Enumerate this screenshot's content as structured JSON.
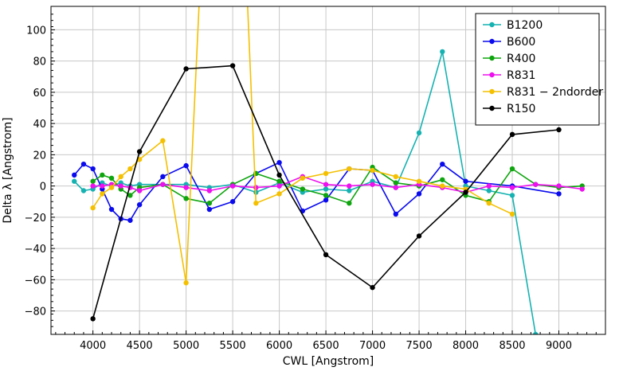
{
  "chart_data": {
    "type": "line",
    "title": "",
    "xlabel": "CWL [Angstrom]",
    "ylabel": "Delta λ [Angstrom]",
    "xlim": [
      3550,
      9500
    ],
    "ylim": [
      -95,
      115
    ],
    "xticks": [
      "4000",
      "4500",
      "5000",
      "5500",
      "6000",
      "6500",
      "7000",
      "7500",
      "8000",
      "8500",
      "9000"
    ],
    "yticks": [
      "−80",
      "−60",
      "−40",
      "−20",
      "0",
      "20",
      "40",
      "60",
      "80",
      "100"
    ],
    "grid": true,
    "legend_position": "top-right",
    "series": [
      {
        "name": "B1200",
        "color": "#16b2b2",
        "x": [
          3800,
          3900,
          4000,
          4100,
          4200,
          4300,
          4400,
          4500,
          4750,
          5000,
          5250,
          5500,
          5750,
          6000,
          6250,
          6500,
          6750,
          7000,
          7250,
          7500,
          7750,
          8000,
          8250,
          8500,
          8750
        ],
        "y": [
          3,
          -3,
          -2,
          2,
          0,
          2,
          0,
          1,
          1,
          1,
          -1,
          1,
          -4,
          2,
          -4,
          -2,
          -3,
          3,
          -1,
          34,
          86,
          0,
          -3,
          -6,
          -95
        ]
      },
      {
        "name": "B600",
        "color": "#0a0aee",
        "x": [
          3800,
          3900,
          4000,
          4100,
          4200,
          4300,
          4400,
          4500,
          4750,
          5000,
          5250,
          5500,
          5750,
          6000,
          6250,
          6500,
          6750,
          7000,
          7250,
          7500,
          7750,
          8000,
          8500,
          9000
        ],
        "y": [
          7,
          14,
          11,
          -2,
          -15,
          -21,
          -22,
          -12,
          6,
          13,
          -15,
          -10,
          8,
          15,
          -16,
          -9,
          11,
          10,
          -18,
          -5,
          14,
          3,
          0,
          -5
        ]
      },
      {
        "name": "R400",
        "color": "#0ea50e",
        "x": [
          4000,
          4100,
          4200,
          4300,
          4400,
          4500,
          4750,
          5000,
          5250,
          5500,
          5750,
          6000,
          6250,
          6500,
          6750,
          7000,
          7250,
          7500,
          7750,
          8000,
          8250,
          8500,
          8750,
          9000,
          9250
        ],
        "y": [
          3,
          7,
          5,
          -2,
          -6,
          -1,
          1,
          -8,
          -11,
          1,
          8,
          3,
          -2,
          -6,
          -11,
          12,
          2,
          0,
          4,
          -6,
          -10,
          11,
          1,
          -1,
          0
        ]
      },
      {
        "name": "R831",
        "color": "#ee10ee",
        "x": [
          4000,
          4100,
          4200,
          4300,
          4400,
          4500,
          4750,
          5000,
          5250,
          5500,
          5750,
          6000,
          6250,
          6500,
          6750,
          7000,
          7250,
          7500,
          7750,
          8000,
          8250,
          8500,
          8750,
          9000,
          9250
        ],
        "y": [
          0,
          0,
          1,
          0,
          -1,
          -3,
          1,
          -1,
          -3,
          0,
          -1,
          0,
          6,
          1,
          0,
          1,
          -1,
          1,
          -1,
          -4,
          0,
          -1,
          1,
          0,
          -2
        ]
      },
      {
        "name": "R831 − 2ndorder",
        "color": "#f4c000",
        "x": [
          4000,
          4100,
          4200,
          4300,
          4400,
          4500,
          4750,
          5000,
          5150,
          5650,
          5750,
          6000,
          6250,
          6500,
          6750,
          7000,
          7250,
          7500,
          7750,
          8000,
          8250,
          8500
        ],
        "y": [
          -14,
          -5,
          -1,
          6,
          11,
          17,
          29,
          -62,
          130,
          130,
          -11,
          -5,
          5,
          8,
          11,
          10,
          6,
          3,
          0,
          -2,
          -11,
          -18
        ]
      },
      {
        "name": "R150",
        "color": "#000000",
        "x": [
          4000,
          4500,
          5000,
          5500,
          6000,
          6500,
          7000,
          7500,
          8000,
          8500,
          9000
        ],
        "y": [
          -85,
          22,
          75,
          77,
          7,
          -44,
          -65,
          -32,
          -4,
          33,
          36
        ]
      }
    ]
  }
}
